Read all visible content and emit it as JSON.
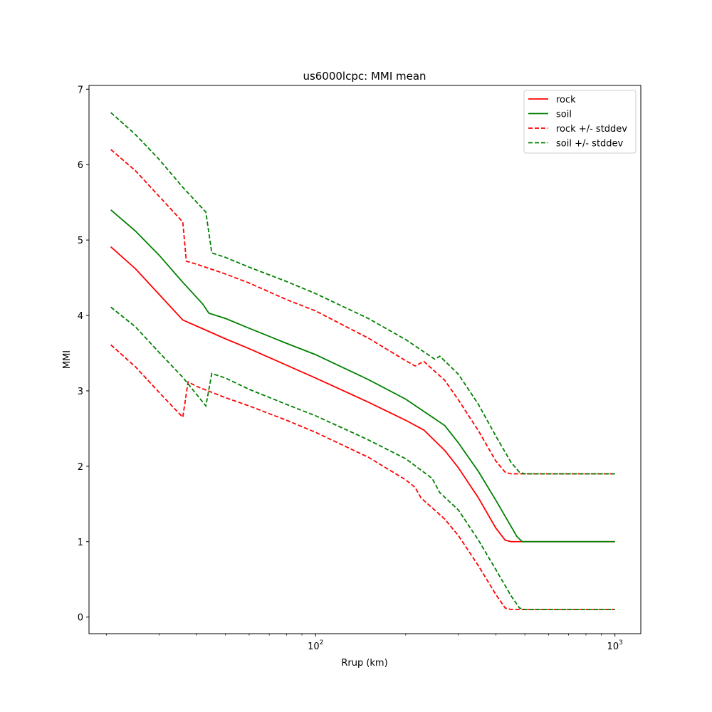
{
  "chart_data": {
    "type": "line",
    "title": "us6000lcpc: MMI mean",
    "xlabel": "Rrup (km)",
    "ylabel": "MMI",
    "xscale": "log",
    "xlim": [
      17.5,
      1220
    ],
    "ylim": [
      -0.22,
      7.05
    ],
    "yticks": [
      "0",
      "1",
      "2",
      "3",
      "4",
      "5",
      "6",
      "7"
    ],
    "xticks": [
      {
        "base": "10",
        "exp": "2",
        "value": 100
      },
      {
        "base": "10",
        "exp": "3",
        "value": 1000
      }
    ],
    "grid": false,
    "legend": {
      "placement": "upper right",
      "entries": [
        "rock",
        "soil",
        "rock +/- stddev",
        "soil +/- stddev"
      ]
    },
    "series": [
      {
        "name": "rock",
        "color": "#ff0000",
        "style": "solid",
        "points": [
          [
            20.7,
            4.91
          ],
          [
            25,
            4.62
          ],
          [
            30,
            4.28
          ],
          [
            36,
            3.94
          ],
          [
            40,
            3.86
          ],
          [
            50,
            3.69
          ],
          [
            60,
            3.56
          ],
          [
            80,
            3.34
          ],
          [
            100,
            3.17
          ],
          [
            150,
            2.85
          ],
          [
            200,
            2.61
          ],
          [
            230,
            2.48
          ],
          [
            270,
            2.21
          ],
          [
            300,
            1.98
          ],
          [
            350,
            1.58
          ],
          [
            400,
            1.18
          ],
          [
            430,
            1.02
          ],
          [
            450,
            1.0
          ],
          [
            500,
            1.0
          ],
          [
            700,
            1.0
          ],
          [
            1000,
            1.0
          ]
        ]
      },
      {
        "name": "soil",
        "color": "#008000",
        "style": "solid",
        "points": [
          [
            20.7,
            5.4
          ],
          [
            25,
            5.12
          ],
          [
            30,
            4.8
          ],
          [
            36,
            4.44
          ],
          [
            42,
            4.15
          ],
          [
            44,
            4.03
          ],
          [
            50,
            3.96
          ],
          [
            60,
            3.83
          ],
          [
            80,
            3.63
          ],
          [
            100,
            3.48
          ],
          [
            150,
            3.15
          ],
          [
            200,
            2.89
          ],
          [
            250,
            2.63
          ],
          [
            270,
            2.54
          ],
          [
            300,
            2.31
          ],
          [
            350,
            1.93
          ],
          [
            400,
            1.55
          ],
          [
            450,
            1.2
          ],
          [
            470,
            1.07
          ],
          [
            490,
            1.0
          ],
          [
            500,
            1.0
          ],
          [
            700,
            1.0
          ],
          [
            1000,
            1.0
          ]
        ]
      },
      {
        "name": "rock +/- stddev",
        "color": "#ff0000",
        "style": "dashed",
        "points": [
          [
            20.7,
            6.2
          ],
          [
            25,
            5.92
          ],
          [
            30,
            5.58
          ],
          [
            36,
            5.24
          ],
          [
            37,
            4.72
          ],
          [
            40,
            4.68
          ],
          [
            50,
            4.55
          ],
          [
            60,
            4.43
          ],
          [
            80,
            4.21
          ],
          [
            100,
            4.06
          ],
          [
            150,
            3.7
          ],
          [
            200,
            3.4
          ],
          [
            215,
            3.33
          ],
          [
            230,
            3.39
          ],
          [
            270,
            3.14
          ],
          [
            300,
            2.88
          ],
          [
            350,
            2.47
          ],
          [
            400,
            2.07
          ],
          [
            430,
            1.92
          ],
          [
            450,
            1.9
          ],
          [
            500,
            1.9
          ],
          [
            700,
            1.9
          ],
          [
            1000,
            1.9
          ]
        ]
      },
      {
        "name": "rock +/- stddev",
        "color": "#ff0000",
        "style": "dashed",
        "points": [
          [
            20.7,
            3.61
          ],
          [
            25,
            3.32
          ],
          [
            30,
            2.98
          ],
          [
            36,
            2.65
          ],
          [
            37.5,
            3.12
          ],
          [
            40,
            3.06
          ],
          [
            50,
            2.91
          ],
          [
            60,
            2.8
          ],
          [
            80,
            2.61
          ],
          [
            100,
            2.45
          ],
          [
            150,
            2.12
          ],
          [
            200,
            1.82
          ],
          [
            215,
            1.72
          ],
          [
            225,
            1.58
          ],
          [
            270,
            1.3
          ],
          [
            300,
            1.08
          ],
          [
            350,
            0.68
          ],
          [
            400,
            0.3
          ],
          [
            430,
            0.12
          ],
          [
            450,
            0.1
          ],
          [
            500,
            0.1
          ],
          [
            700,
            0.1
          ],
          [
            1000,
            0.1
          ]
        ]
      },
      {
        "name": "soil +/- stddev",
        "color": "#008000",
        "style": "dashed",
        "points": [
          [
            20.7,
            6.69
          ],
          [
            25,
            6.4
          ],
          [
            30,
            6.07
          ],
          [
            36,
            5.7
          ],
          [
            43,
            5.37
          ],
          [
            45,
            4.83
          ],
          [
            50,
            4.77
          ],
          [
            60,
            4.64
          ],
          [
            80,
            4.45
          ],
          [
            100,
            4.29
          ],
          [
            150,
            3.96
          ],
          [
            200,
            3.68
          ],
          [
            250,
            3.42
          ],
          [
            260,
            3.46
          ],
          [
            300,
            3.22
          ],
          [
            350,
            2.82
          ],
          [
            400,
            2.4
          ],
          [
            450,
            2.05
          ],
          [
            480,
            1.92
          ],
          [
            500,
            1.9
          ],
          [
            700,
            1.9
          ],
          [
            1000,
            1.9
          ]
        ]
      },
      {
        "name": "soil +/- stddev",
        "color": "#008000",
        "style": "dashed",
        "points": [
          [
            20.7,
            4.11
          ],
          [
            25,
            3.85
          ],
          [
            30,
            3.51
          ],
          [
            36,
            3.18
          ],
          [
            43,
            2.8
          ],
          [
            45,
            3.23
          ],
          [
            50,
            3.17
          ],
          [
            60,
            3.02
          ],
          [
            80,
            2.82
          ],
          [
            100,
            2.67
          ],
          [
            150,
            2.35
          ],
          [
            200,
            2.1
          ],
          [
            245,
            1.84
          ],
          [
            260,
            1.65
          ],
          [
            300,
            1.42
          ],
          [
            350,
            1.02
          ],
          [
            400,
            0.63
          ],
          [
            450,
            0.28
          ],
          [
            480,
            0.12
          ],
          [
            500,
            0.1
          ],
          [
            700,
            0.1
          ],
          [
            1000,
            0.1
          ]
        ]
      }
    ]
  }
}
